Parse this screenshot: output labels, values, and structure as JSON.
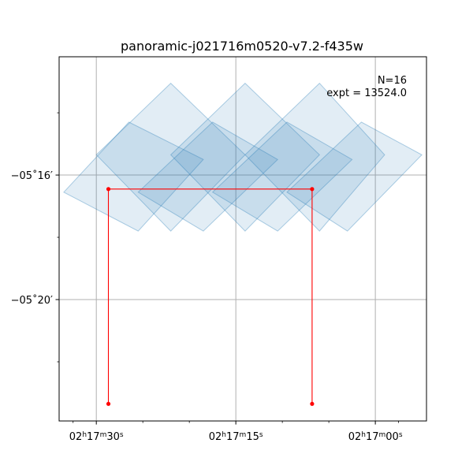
{
  "chart_data": {
    "type": "scatter",
    "title": "panoramic-j021716m0520-v7.2-f435w",
    "annotation": {
      "count_text": "N=16",
      "expt_text": "expt = 13524.0"
    },
    "x_axis": {
      "label": "",
      "units": "seconds of RA (02h17m + s)",
      "range": [
        34.0,
        -5.5
      ],
      "major_ticks": [
        {
          "value": 30,
          "h": "02",
          "m": "17",
          "s": "30"
        },
        {
          "value": 15,
          "h": "02",
          "m": "17",
          "s": "15"
        },
        {
          "value": 0,
          "h": "02",
          "m": "17",
          "s": "00"
        }
      ],
      "minor_ticks": [
        32.5,
        25,
        20,
        10,
        5,
        -2.5
      ]
    },
    "y_axis": {
      "label": "",
      "units": "arcminutes of Dec below -05d00m",
      "range": [
        -23.9,
        -12.2
      ],
      "major_ticks": [
        {
          "value": -16,
          "label": "−05˚16′"
        },
        {
          "value": -20,
          "label": "−05˚20′"
        }
      ],
      "minor_ticks": [
        -14,
        -18,
        -22
      ]
    },
    "grid": true,
    "footprints": [
      {
        "name": "footprint-1",
        "corners": [
          [
            33.5,
            -16.55
          ],
          [
            26.5,
            -14.3
          ],
          [
            18.5,
            -15.5
          ],
          [
            25.5,
            -17.8
          ]
        ]
      },
      {
        "name": "footprint-2",
        "corners": [
          [
            30.0,
            -15.35
          ],
          [
            22.0,
            -13.05
          ],
          [
            14.0,
            -15.35
          ],
          [
            22.0,
            -17.8
          ]
        ]
      },
      {
        "name": "footprint-3",
        "corners": [
          [
            25.5,
            -16.55
          ],
          [
            17.5,
            -14.3
          ],
          [
            10.5,
            -15.5
          ],
          [
            18.5,
            -17.8
          ]
        ]
      },
      {
        "name": "footprint-4",
        "corners": [
          [
            22.0,
            -15.35
          ],
          [
            14.0,
            -13.05
          ],
          [
            6.0,
            -15.35
          ],
          [
            14.0,
            -17.8
          ]
        ]
      },
      {
        "name": "footprint-5",
        "corners": [
          [
            17.5,
            -16.55
          ],
          [
            9.5,
            -14.3
          ],
          [
            2.5,
            -15.5
          ],
          [
            10.5,
            -17.8
          ]
        ]
      },
      {
        "name": "footprint-6",
        "corners": [
          [
            14.0,
            -15.35
          ],
          [
            6.0,
            -13.05
          ],
          [
            -1.0,
            -15.35
          ],
          [
            6.0,
            -17.8
          ]
        ]
      },
      {
        "name": "footprint-7",
        "corners": [
          [
            9.5,
            -16.55
          ],
          [
            1.5,
            -14.3
          ],
          [
            -5.0,
            -15.35
          ],
          [
            3.0,
            -17.8
          ]
        ]
      }
    ],
    "overlay_path": {
      "points": [
        [
          28.7,
          -23.35
        ],
        [
          28.7,
          -16.45
        ],
        [
          6.8,
          -16.45
        ],
        [
          6.8,
          -23.35
        ]
      ]
    }
  }
}
